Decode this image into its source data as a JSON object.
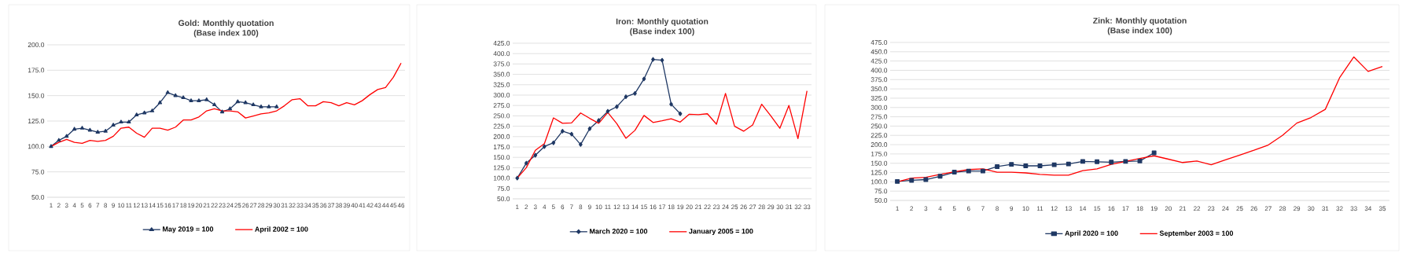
{
  "chart_data": [
    {
      "type": "line",
      "title": "Gold: Monthly quotation",
      "subtitle": "(Base index 100)",
      "categories": [
        "1",
        "2",
        "3",
        "4",
        "5",
        "6",
        "7",
        "8",
        "9",
        "10",
        "11",
        "12",
        "13",
        "14",
        "15",
        "16",
        "17",
        "18",
        "19",
        "20",
        "21",
        "22",
        "23",
        "24",
        "25",
        "26",
        "27",
        "28",
        "29",
        "30",
        "31",
        "32",
        "33",
        "34",
        "35",
        "36",
        "37",
        "38",
        "39",
        "40",
        "41",
        "42",
        "43",
        "44",
        "45",
        "46"
      ],
      "series": [
        {
          "name": "May 2019 = 100",
          "color": "#1f3864",
          "marker": "triangle",
          "values": [
            100,
            106,
            110,
            117,
            118,
            116,
            114,
            115,
            121,
            124,
            124,
            131,
            133,
            135,
            143,
            153,
            150,
            148,
            145,
            145,
            146,
            141,
            134,
            137,
            144,
            143,
            141,
            139,
            139,
            139,
            null,
            null,
            null,
            null,
            null,
            null,
            null,
            null,
            null,
            null,
            null,
            null,
            null,
            null,
            null,
            null
          ]
        },
        {
          "name": "April 2002 = 100",
          "color": "#ff0000",
          "marker": "none",
          "values": [
            100,
            104,
            107,
            104,
            103,
            106,
            105,
            106,
            110,
            118,
            119,
            113,
            109,
            118,
            118,
            116,
            119,
            126,
            126,
            129,
            135,
            137,
            135,
            135,
            134,
            128,
            130,
            132,
            133,
            135,
            140,
            146,
            147,
            140,
            140,
            144,
            143,
            140,
            143,
            141,
            145,
            151,
            156,
            158,
            168,
            182
          ]
        }
      ],
      "ylim": [
        50,
        200
      ],
      "yticks": [
        {
          "value": 50,
          "label": "50.0"
        },
        {
          "value": 75,
          "label": "75.0"
        },
        {
          "value": 100,
          "label": "100.0"
        },
        {
          "value": 125,
          "label": "125.0"
        },
        {
          "value": 150,
          "label": "150.0"
        },
        {
          "value": 175,
          "label": "175.0"
        },
        {
          "value": 200,
          "label": "200.0"
        }
      ],
      "grid": "y",
      "legend": "bottom",
      "line_style": "solid"
    },
    {
      "type": "line",
      "title": "Iron: Monthly quotation",
      "subtitle": "(Base index 100)",
      "categories": [
        "1",
        "2",
        "3",
        "4",
        "5",
        "6",
        "7",
        "8",
        "9",
        "10",
        "11",
        "12",
        "13",
        "14",
        "15",
        "16",
        "17",
        "18",
        "19",
        "20",
        "21",
        "22",
        "23",
        "24",
        "25",
        "26",
        "27",
        "28",
        "29",
        "30",
        "31",
        "32",
        "33"
      ],
      "series": [
        {
          "name": "March 2020 = 100",
          "color": "#1f3864",
          "marker": "diamond",
          "values": [
            100,
            136,
            155,
            176,
            185,
            213,
            206,
            181,
            219,
            239,
            261,
            272,
            296,
            304,
            339,
            386,
            384,
            278,
            255,
            null,
            null,
            null,
            null,
            null,
            null,
            null,
            null,
            null,
            null,
            null,
            null,
            null,
            null
          ]
        },
        {
          "name": "January 2005 = 100",
          "color": "#ff0000",
          "marker": "none",
          "values": [
            100,
            125,
            167,
            183,
            245,
            232,
            233,
            257,
            244,
            232,
            258,
            231,
            196,
            215,
            251,
            234,
            238,
            243,
            235,
            254,
            253,
            255,
            230,
            304,
            225,
            213,
            228,
            278,
            250,
            220,
            275,
            195,
            310
          ]
        }
      ],
      "ylim": [
        50,
        425
      ],
      "yticks": [
        {
          "value": 50,
          "label": "50.0"
        },
        {
          "value": 75,
          "label": "75.0"
        },
        {
          "value": 100,
          "label": "100.0"
        },
        {
          "value": 125,
          "label": "125.0"
        },
        {
          "value": 150,
          "label": "150.0"
        },
        {
          "value": 175,
          "label": "175.0"
        },
        {
          "value": 200,
          "label": "200.0"
        },
        {
          "value": 225,
          "label": "225.0"
        },
        {
          "value": 250,
          "label": "250.0"
        },
        {
          "value": 275,
          "label": "275.0"
        },
        {
          "value": 300,
          "label": "300.0"
        },
        {
          "value": 325,
          "label": "325.0"
        },
        {
          "value": 350,
          "label": "350.0"
        },
        {
          "value": 375,
          "label": "375.0"
        },
        {
          "value": 400,
          "label": "400.0"
        },
        {
          "value": 425,
          "label": "425.0"
        }
      ],
      "grid": "y",
      "legend": "bottom",
      "line_style": "solid"
    },
    {
      "type": "line",
      "title": "Zink: Monthly quotation",
      "subtitle": "(Base index 100)",
      "categories": [
        "1",
        "2",
        "3",
        "4",
        "5",
        "6",
        "7",
        "8",
        "9",
        "10",
        "11",
        "12",
        "13",
        "14",
        "15",
        "16",
        "17",
        "18",
        "19",
        "20",
        "21",
        "22",
        "23",
        "24",
        "25",
        "26",
        "27",
        "28",
        "29",
        "30",
        "31",
        "32",
        "33",
        "34",
        "35"
      ],
      "series": [
        {
          "name": "April 2020 = 100",
          "color": "#1f3864",
          "marker": "square",
          "values": [
            101,
            104,
            106,
            115,
            126,
            129,
            129,
            141,
            147,
            143,
            143,
            146,
            148,
            155,
            154,
            153,
            155,
            156,
            178,
            null,
            null,
            null,
            null,
            null,
            null,
            null,
            null,
            null,
            null,
            null,
            null,
            null,
            null,
            null,
            null
          ]
        },
        {
          "name": "September 2003 = 100",
          "color": "#ff0000",
          "marker": "none",
          "values": [
            100,
            110,
            112,
            120,
            127,
            133,
            135,
            126,
            126,
            124,
            120,
            118,
            118,
            130,
            135,
            147,
            155,
            163,
            170,
            161,
            152,
            156,
            146,
            159,
            172,
            185,
            199,
            225,
            258,
            273,
            295,
            380,
            436,
            397,
            410
          ]
        }
      ],
      "ylim": [
        50,
        475
      ],
      "yticks": [
        {
          "value": 50,
          "label": "50.0"
        },
        {
          "value": 75,
          "label": "75.0"
        },
        {
          "value": 100,
          "label": "100.0"
        },
        {
          "value": 125,
          "label": "125.0"
        },
        {
          "value": 150,
          "label": "150.0"
        },
        {
          "value": 175,
          "label": "175.0"
        },
        {
          "value": 200,
          "label": "200.0"
        },
        {
          "value": 225,
          "label": "225.0"
        },
        {
          "value": 250,
          "label": "250.0"
        },
        {
          "value": 275,
          "label": "275.0"
        },
        {
          "value": 300,
          "label": "300.0"
        },
        {
          "value": 325,
          "label": "325.0"
        },
        {
          "value": 350,
          "label": "350.0"
        },
        {
          "value": 375,
          "label": "375.0"
        },
        {
          "value": 400,
          "label": "400.0"
        },
        {
          "value": 425,
          "label": "425.0"
        },
        {
          "value": 450,
          "label": "450.0"
        },
        {
          "value": 475,
          "label": "475.0"
        }
      ],
      "grid": "y",
      "legend": "bottom",
      "line_style": "solid"
    }
  ]
}
